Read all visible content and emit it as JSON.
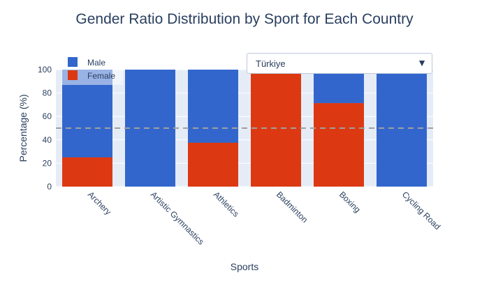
{
  "chart_data": {
    "type": "bar",
    "barmode": "stack",
    "title": "Gender Ratio Distribution by Sport for Each Country",
    "xlabel": "Sports",
    "ylabel": "Percentage (%)",
    "ylim": [
      0,
      100
    ],
    "yticks": [
      0,
      20,
      40,
      60,
      80,
      100
    ],
    "grid": true,
    "legend_position": "top-left",
    "reference_line": 50,
    "categories": [
      "Archery",
      "Artistic Gymnastics",
      "Athletics",
      "Badminton",
      "Boxing",
      "Cycling Road"
    ],
    "series": [
      {
        "name": "Female",
        "color": "#dc3912",
        "values": [
          25,
          0,
          37.5,
          100,
          71.4,
          0
        ]
      },
      {
        "name": "Male",
        "color": "#3366cc",
        "values": [
          75,
          100,
          62.5,
          0,
          28.6,
          100
        ]
      }
    ]
  },
  "colors": {
    "plot_bg": "#e5ecf6",
    "grid": "#ffffff",
    "text": "#2a3f5f",
    "reference_line": "#a0a0a0"
  },
  "dropdown": {
    "selected": "Türkiye",
    "arrow_icon": "triangle-down-icon",
    "arrow_glyph": "▼"
  }
}
